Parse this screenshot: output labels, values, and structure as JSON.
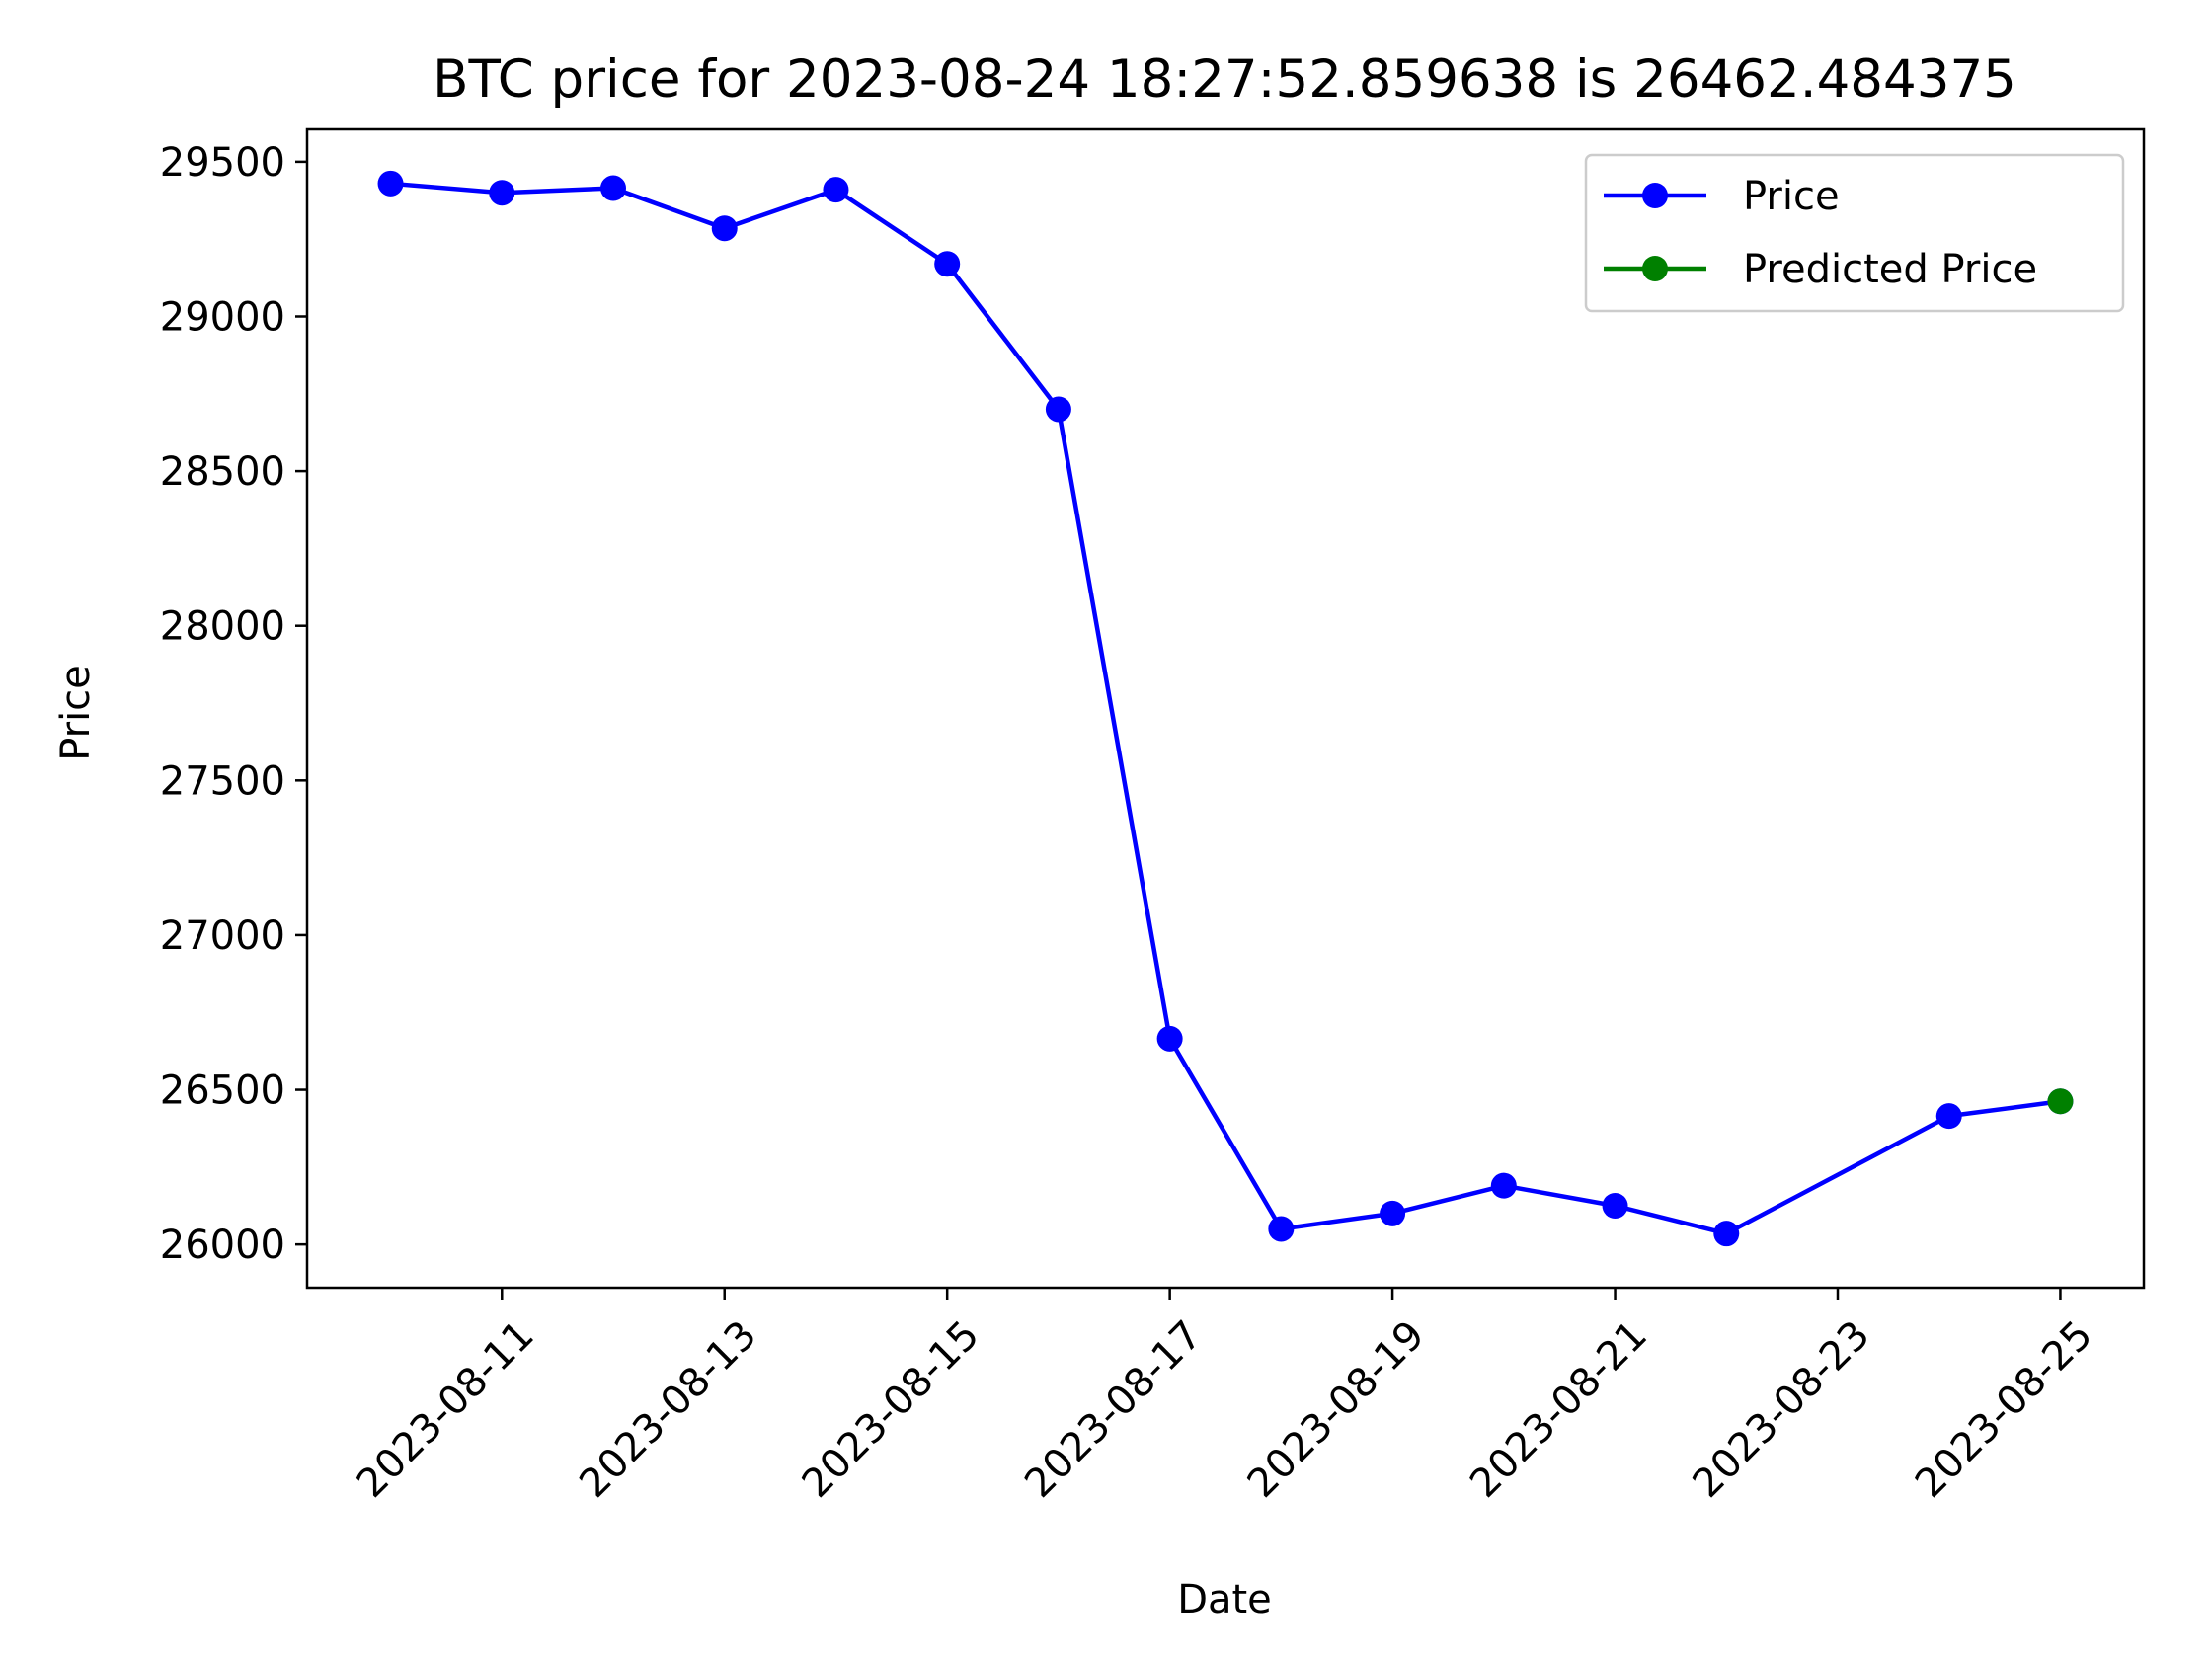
{
  "chart_data": {
    "type": "line",
    "title": "BTC price for 2023-08-24 18:27:52.859638 is 26462.484375",
    "xlabel": "Date",
    "ylabel": "Price",
    "x_range": [
      "2023-08-09T06:00",
      "2023-08-25T18:00"
    ],
    "ylim": [
      25860,
      29605
    ],
    "x_ticks": [
      "2023-08-11",
      "2023-08-13",
      "2023-08-15",
      "2023-08-17",
      "2023-08-19",
      "2023-08-21",
      "2023-08-23",
      "2023-08-25"
    ],
    "y_ticks": [
      26000,
      26500,
      27000,
      27500,
      28000,
      28500,
      29000,
      29500
    ],
    "grid": false,
    "legend_position": "top-right",
    "series": [
      {
        "name": "Price",
        "color": "#0000ff",
        "points": [
          {
            "x": "2023-08-10",
            "y": 29430
          },
          {
            "x": "2023-08-11",
            "y": 29400
          },
          {
            "x": "2023-08-12",
            "y": 29415
          },
          {
            "x": "2023-08-13",
            "y": 29285
          },
          {
            "x": "2023-08-14",
            "y": 29410
          },
          {
            "x": "2023-08-15",
            "y": 29170
          },
          {
            "x": "2023-08-16",
            "y": 28700
          },
          {
            "x": "2023-08-17",
            "y": 26665
          },
          {
            "x": "2023-08-18",
            "y": 26050
          },
          {
            "x": "2023-08-19",
            "y": 26100
          },
          {
            "x": "2023-08-20",
            "y": 26190
          },
          {
            "x": "2023-08-21",
            "y": 26125
          },
          {
            "x": "2023-08-22",
            "y": 26035
          },
          {
            "x": "2023-08-24",
            "y": 26415
          },
          {
            "x": "2023-08-25",
            "y": 26462.484375
          }
        ]
      },
      {
        "name": "Predicted Price",
        "color": "#008000",
        "points": [
          {
            "x": "2023-08-25",
            "y": 26462.484375
          }
        ]
      }
    ]
  }
}
